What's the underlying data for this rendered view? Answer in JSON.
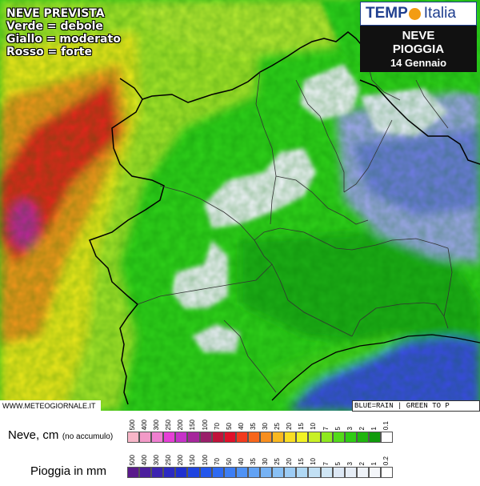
{
  "legend": {
    "line1": "NEVE PREVISTA",
    "line2": "Verde = debole",
    "line3": "Giallo = moderato",
    "line4": "Rosso = forte"
  },
  "brand": {
    "tempo": "TEMP",
    "italia": "Italia"
  },
  "title": {
    "line1": "NEVE",
    "line2": "PIOGGIA",
    "line3": "14 Gennaio"
  },
  "credit": "WWW.METEOGIORNALE.IT",
  "rain_note": "BLUE=RAIN | GREEN TO P",
  "snow_scale": {
    "label": "Neve, cm",
    "note": "(no accumulo)",
    "ticks": [
      "500",
      "400",
      "300",
      "250",
      "200",
      "150",
      "100",
      "70",
      "50",
      "40",
      "35",
      "30",
      "25",
      "20",
      "15",
      "10",
      "7",
      "5",
      "3",
      "2",
      "1",
      "0.1"
    ],
    "colors": [
      "#f7b6c8",
      "#f29ac7",
      "#ef7fd0",
      "#e63fd6",
      "#c632c9",
      "#a6279c",
      "#9a1f6a",
      "#c0123a",
      "#e0102a",
      "#f23a1e",
      "#f7661c",
      "#f88f1f",
      "#f9b820",
      "#fade23",
      "#f2f224",
      "#c8f025",
      "#8ee81f",
      "#53da1a",
      "#2ecc14",
      "#1fb50e",
      "#109b0b",
      "#ffffff"
    ]
  },
  "rain_scale": {
    "label": "Pioggia in mm",
    "ticks": [
      "500",
      "400",
      "300",
      "250",
      "200",
      "150",
      "100",
      "70",
      "50",
      "40",
      "35",
      "30",
      "25",
      "20",
      "15",
      "10",
      "7",
      "5",
      "3",
      "2",
      "1",
      "0.2"
    ],
    "colors": [
      "#5a1a8c",
      "#4c1f9e",
      "#3c24b0",
      "#2c2ac2",
      "#1f30d0",
      "#1f44e0",
      "#2356ec",
      "#2e6af2",
      "#3d7ef4",
      "#4f92f4",
      "#62a2f4",
      "#76b2f4",
      "#89c0f4",
      "#9dccf4",
      "#b0d8f4",
      "#c2e0f4",
      "#d0e6f5",
      "#dde8f5",
      "#e6edf6",
      "#eef2f8",
      "#f4f6fa",
      "#ffffff"
    ]
  },
  "map_colors": {
    "green": "#2fd21a",
    "dark_green": "#1aae12",
    "yellow_green": "#a8e62a",
    "yellow": "#f2ea1c",
    "orange": "#f7961c",
    "red": "#e8201a",
    "magenta": "#c0249c",
    "snow_white": "#f2f4fb",
    "rain_blue": "#3a48e8",
    "light_blue": "#aab4f2"
  }
}
